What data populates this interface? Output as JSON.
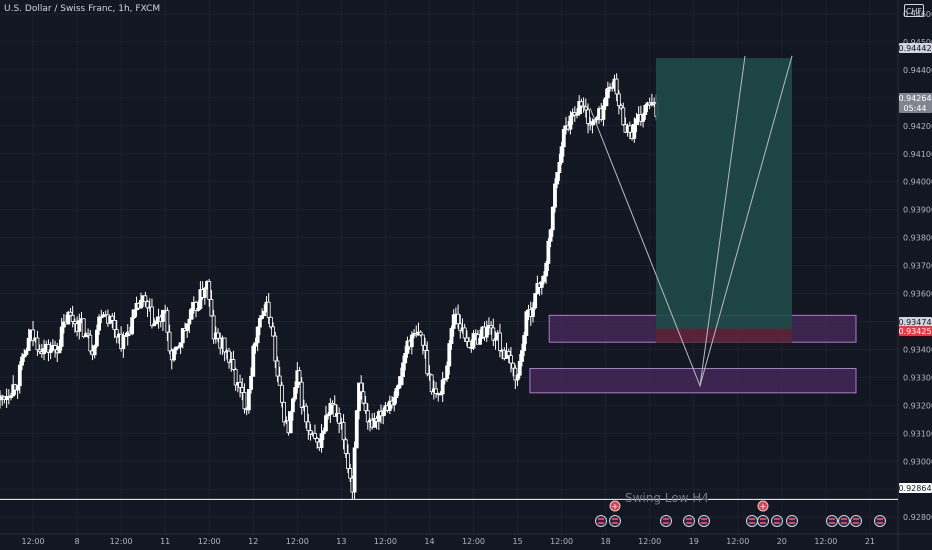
{
  "header": {
    "title": "U.S. Dollar / Swiss Franc, 1h, FXCM",
    "currency": "CHF"
  },
  "colors": {
    "background": "#131722",
    "grid": "#1c2030",
    "candle": "#ffffff",
    "target_zone": "#1f4a48",
    "stop_zone": "#5a2436",
    "supply_zone": "#4a2a5e",
    "supply_border": "#b07ad0",
    "price_label_bg": "#808590",
    "stop_label_bg": "#f23645"
  },
  "chart_data": {
    "type": "candlestick",
    "symbol": "USDCHF",
    "interval": "1h",
    "y_axis": {
      "range": [
        0.9274,
        0.9465
      ],
      "ticks": [
        "0.94600",
        "0.94500",
        "0.94400",
        "0.94300",
        "0.94200",
        "0.94100",
        "0.94000",
        "0.93900",
        "0.93800",
        "0.93700",
        "0.93600",
        "0.93500",
        "0.93400",
        "0.93300",
        "0.93200",
        "0.93100",
        "0.93000",
        "0.92900",
        "0.92800"
      ]
    },
    "x_axis": {
      "ticks": [
        "12:00",
        "8",
        "12:00",
        "11",
        "12:00",
        "12",
        "12:00",
        "13",
        "12:00",
        "14",
        "12:00",
        "15",
        "12:00",
        "18",
        "12:00",
        "19",
        "12:00",
        "20",
        "12:00",
        "21"
      ]
    },
    "price_labels": [
      {
        "value": "0.94442",
        "style": "light"
      },
      {
        "value": "0.94264",
        "sub": "05:44",
        "style": "gray"
      },
      {
        "value": "0.93474",
        "style": "light"
      },
      {
        "value": "0.93425",
        "style": "red"
      },
      {
        "value": "0.92864",
        "style": "white"
      }
    ],
    "horizontal_line": 0.92864,
    "zones": [
      {
        "name": "upper-zone",
        "from": 0.93426,
        "to": 0.93522
      },
      {
        "name": "lower-zone",
        "from": 0.93245,
        "to": 0.93332
      }
    ],
    "position": {
      "type": "long",
      "entry": 0.93474,
      "target": 0.94442,
      "stop": 0.93425
    },
    "projection": [
      {
        "t": 3040,
        "p": 0.94264
      },
      {
        "t": 3080,
        "p": 0.9327
      },
      {
        "t": 3133,
        "p": 0.9445
      },
      {
        "t": 3080,
        "p": 0.9327
      },
      {
        "t": 3162,
        "p": 0.9445
      }
    ],
    "annotation": "Swing Low H4",
    "ohlc": [],
    "events_count": 24
  }
}
